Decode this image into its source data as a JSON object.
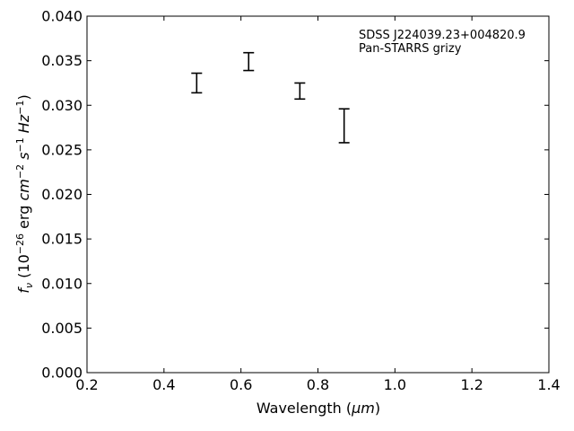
{
  "chart_data": {
    "type": "scatter",
    "annotation": {
      "line1": "SDSS J224039.23+004820.9",
      "line2": "Pan-STARRS grizy"
    },
    "xlabel": {
      "main": "Wavelength (",
      "unit": "μm",
      "close": ")"
    },
    "ylabel": {
      "f": "f",
      "nu": "ν",
      "open": " (10",
      "exp1": "−26",
      "erg": " erg ",
      "cm": "cm",
      "exp2": "−2",
      "s": " s",
      "exp3": "−1",
      "hz": " Hz",
      "exp4": "−1",
      "close": ")"
    },
    "xlim": [
      0.2,
      1.4
    ],
    "ylim": [
      0.0,
      0.04
    ],
    "xticks": [
      0.2,
      0.4,
      0.6,
      0.8,
      1.0,
      1.2,
      1.4
    ],
    "xtick_labels": [
      "0.2",
      "0.4",
      "0.6",
      "0.8",
      "1.0",
      "1.2",
      "1.4"
    ],
    "yticks": [
      0.0,
      0.005,
      0.01,
      0.015,
      0.02,
      0.025,
      0.03,
      0.035,
      0.04
    ],
    "ytick_labels": [
      "0.000",
      "0.005",
      "0.010",
      "0.015",
      "0.020",
      "0.025",
      "0.030",
      "0.035",
      "0.040"
    ],
    "grid": false,
    "series": [
      {
        "points": [
          {
            "x": 0.485,
            "y": 0.0325,
            "yerr": 0.0011
          },
          {
            "x": 0.62,
            "y": 0.0349,
            "yerr": 0.001
          },
          {
            "x": 0.753,
            "y": 0.0316,
            "yerr": 0.0009
          },
          {
            "x": 0.868,
            "y": 0.0277,
            "yerr": 0.0019
          }
        ],
        "color": "#000000"
      }
    ]
  }
}
